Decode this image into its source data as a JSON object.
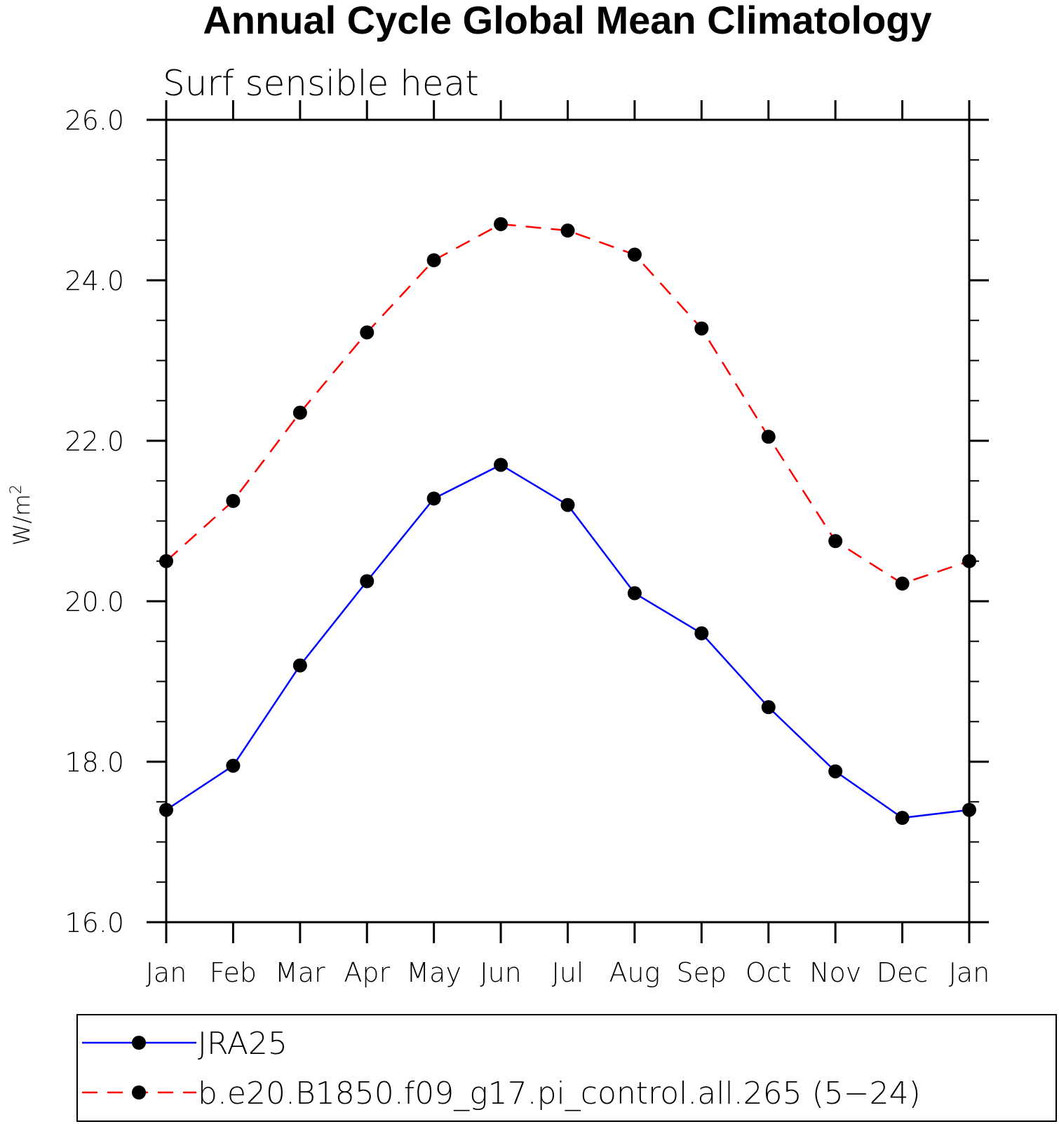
{
  "chart_data": {
    "type": "line",
    "title": "Annual Cycle Global Mean Climatology",
    "subtitle": "Surf sensible heat",
    "ylabel": "W/m",
    "ylabel_superscript": "2",
    "xlabel": "",
    "categories": [
      "Jan",
      "Feb",
      "Mar",
      "Apr",
      "May",
      "Jun",
      "Jul",
      "Aug",
      "Sep",
      "Oct",
      "Nov",
      "Dec",
      "Jan"
    ],
    "ylim": [
      16.0,
      26.0
    ],
    "y_ticks": [
      "16.0",
      "18.0",
      "20.0",
      "22.0",
      "24.0",
      "26.0"
    ],
    "y_tick_values": [
      16,
      18,
      20,
      22,
      24,
      26
    ],
    "y_minor_step": 0.5,
    "grid": false,
    "legend_position": "bottom",
    "series": [
      {
        "name": "JRA25",
        "color": "#0000ff",
        "line_style": "solid",
        "marker": "filled-circle",
        "values": [
          17.4,
          17.95,
          19.2,
          20.25,
          21.28,
          21.7,
          21.2,
          20.1,
          19.6,
          18.68,
          17.88,
          17.3,
          17.4
        ]
      },
      {
        "name": "b.e20.B1850.f09_g17.pi_control.all.265 (5−24)",
        "color": "#ff0000",
        "line_style": "dashed",
        "marker": "filled-circle",
        "values": [
          20.5,
          21.25,
          22.35,
          23.35,
          24.25,
          24.7,
          24.62,
          24.32,
          23.4,
          22.05,
          20.75,
          20.22,
          20.5
        ]
      }
    ]
  }
}
